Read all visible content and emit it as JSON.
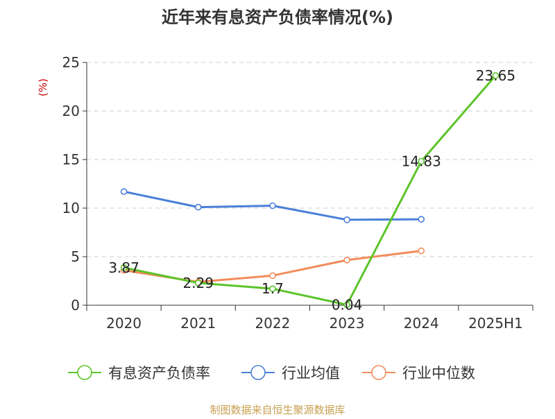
{
  "chart_data": {
    "type": "line",
    "title": "近年来有息资产负债率情况(%)",
    "ylabel": "(%)",
    "xlabel": "",
    "categories": [
      "2020",
      "2021",
      "2022",
      "2023",
      "2024",
      "2025H1"
    ],
    "ylim": [
      0,
      25
    ],
    "yticks": [
      0,
      5,
      10,
      15,
      20,
      25
    ],
    "grid": "y-dashed",
    "legend": "bottom",
    "series": [
      {
        "name": "有息资产负债率",
        "color": "#5cc42a",
        "values": [
          3.87,
          2.29,
          1.7,
          0.04,
          14.83,
          23.65
        ],
        "labels": [
          "3.87",
          "2.29",
          "1.7",
          "0.04",
          "14.83",
          "23.65"
        ]
      },
      {
        "name": "行业均值",
        "color": "#4a7fd8",
        "values": [
          11.7,
          10.1,
          10.25,
          8.8,
          8.85,
          null
        ]
      },
      {
        "name": "行业中位数",
        "color": "#f28c5a",
        "values": [
          3.6,
          2.4,
          3.05,
          4.65,
          5.6,
          null
        ]
      }
    ]
  },
  "ylabel_color": "#cc0000",
  "source": "制图数据来自恒生聚源数据库",
  "source_color": "#c8a050"
}
